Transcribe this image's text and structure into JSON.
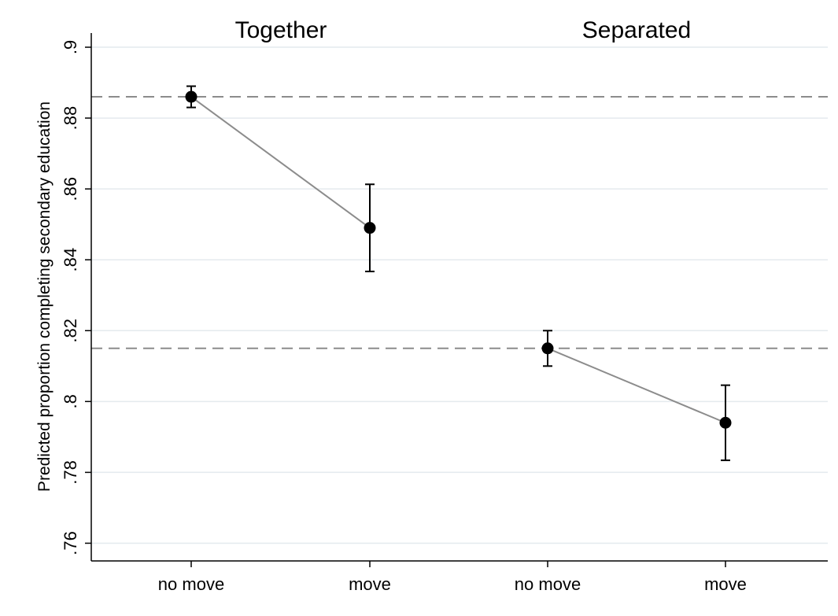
{
  "chart_data": {
    "type": "scatter",
    "ylabel": "Predicted proportion completing secondary education",
    "xlabel": "",
    "ylim": [
      0.755,
      0.904
    ],
    "yticks": [
      {
        "value": 0.76,
        "label": ".76"
      },
      {
        "value": 0.78,
        "label": ".78"
      },
      {
        "value": 0.8,
        "label": ".8"
      },
      {
        "value": 0.82,
        "label": ".82"
      },
      {
        "value": 0.84,
        "label": ".84"
      },
      {
        "value": 0.86,
        "label": ".86"
      },
      {
        "value": 0.88,
        "label": ".88"
      },
      {
        "value": 0.9,
        "label": ".9"
      }
    ],
    "grid": true,
    "panels": [
      {
        "title": "Together",
        "reference_line": 0.886,
        "points": [
          {
            "category": "no move",
            "estimate": 0.886,
            "ci_low": 0.883,
            "ci_high": 0.889
          },
          {
            "category": "move",
            "estimate": 0.849,
            "ci_low": 0.8367,
            "ci_high": 0.8613
          }
        ]
      },
      {
        "title": "Separated",
        "reference_line": 0.815,
        "points": [
          {
            "category": "no move",
            "estimate": 0.815,
            "ci_low": 0.81,
            "ci_high": 0.82
          },
          {
            "category": "move",
            "estimate": 0.794,
            "ci_low": 0.7834,
            "ci_high": 0.8046
          }
        ]
      }
    ],
    "colors": {
      "point": "#000000",
      "error_bar": "#000000",
      "connector": "#8c8c8c",
      "reference_line": "#8c8c8c",
      "grid": "#e4eaee",
      "axis": "#000000"
    }
  }
}
